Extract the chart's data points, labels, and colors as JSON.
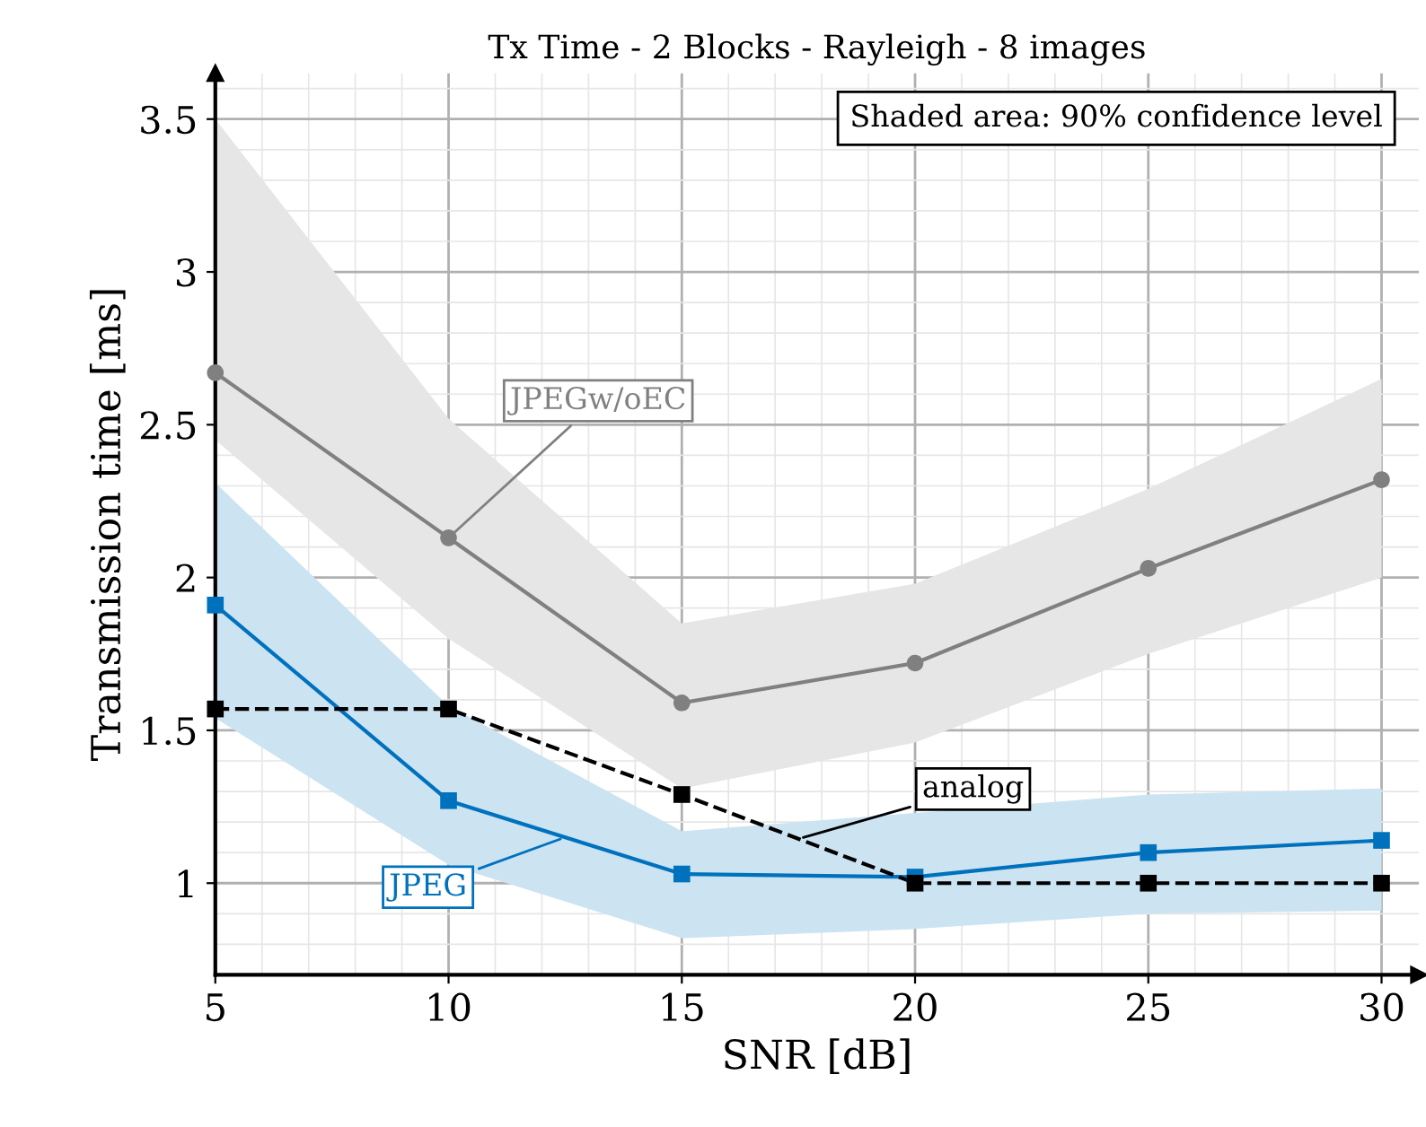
{
  "chart_data": {
    "type": "line",
    "title": "Tx Time - 2 Blocks - Rayleigh - 8 images",
    "xlabel": "SNR [dB]",
    "ylabel": "Transmission time [ms]",
    "x": [
      5,
      10,
      15,
      20,
      25,
      30
    ],
    "series": [
      {
        "name": "JPEGw/oEC",
        "color": "#808080",
        "marker": "circle",
        "line_style": "solid",
        "values": [
          2.67,
          2.13,
          1.59,
          1.72,
          2.03,
          2.32
        ],
        "lower": [
          2.45,
          1.8,
          1.31,
          1.46,
          1.75,
          2.0
        ],
        "upper": [
          3.5,
          2.52,
          1.85,
          1.98,
          2.29,
          2.65
        ]
      },
      {
        "name": "JPEG",
        "color": "#0072bd",
        "marker": "square",
        "line_style": "solid",
        "values": [
          1.91,
          1.27,
          1.03,
          1.02,
          1.1,
          1.14
        ],
        "lower": [
          1.54,
          1.06,
          0.82,
          0.85,
          0.9,
          0.91
        ],
        "upper": [
          2.31,
          1.58,
          1.17,
          1.23,
          1.29,
          1.31
        ]
      },
      {
        "name": "analog",
        "color": "#000000",
        "marker": "square",
        "line_style": "dashed",
        "values": [
          1.57,
          1.57,
          1.29,
          1.0,
          1.0,
          1.0
        ]
      }
    ],
    "annotations": [
      "Shaded area: 90% confidence level"
    ],
    "xlim": [
      5,
      30.8
    ],
    "ylim": [
      0.7,
      3.65
    ],
    "xticks": [
      5,
      10,
      15,
      20,
      25,
      30
    ],
    "yticks": [
      1,
      1.5,
      2,
      2.5,
      3,
      3.5
    ],
    "grid": true,
    "legend": false
  }
}
